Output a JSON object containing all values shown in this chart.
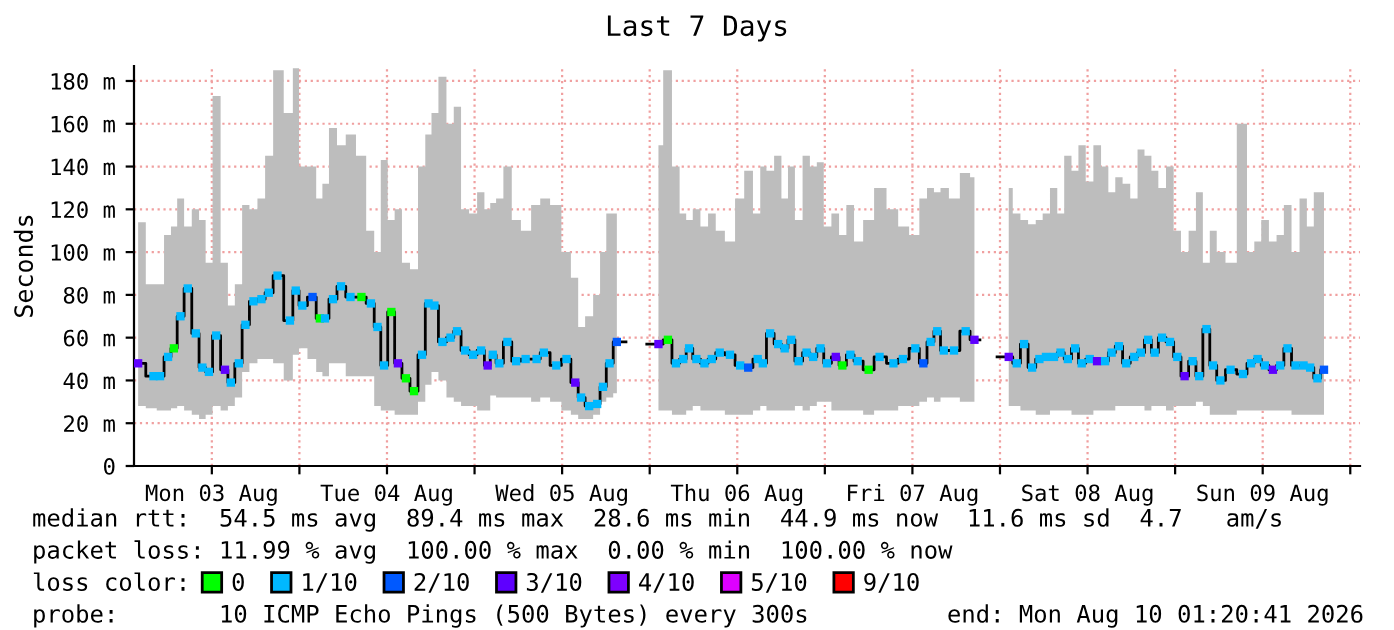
{
  "chart_data": {
    "type": "step",
    "title": "Last 7 Days",
    "ylabel": "Seconds",
    "legend_title": "loss color:",
    "legend": "bottom",
    "grid": true,
    "xlim": [
      "2026-08-03T01:20",
      "2026-08-10T01:20"
    ],
    "xticks": [
      {
        "value": "2026-08-03T12:00",
        "label": "Mon 03 Aug"
      },
      {
        "value": "2026-08-04T00:00",
        "label": null
      },
      {
        "value": "2026-08-04T12:00",
        "label": "Tue 04 Aug"
      },
      {
        "value": "2026-08-05T00:00",
        "label": null
      },
      {
        "value": "2026-08-05T12:00",
        "label": "Wed 05 Aug"
      },
      {
        "value": "2026-08-06T00:00",
        "label": null
      },
      {
        "value": "2026-08-06T12:00",
        "label": "Thu 06 Aug"
      },
      {
        "value": "2026-08-07T00:00",
        "label": null
      },
      {
        "value": "2026-08-07T12:00",
        "label": "Fri 07 Aug"
      },
      {
        "value": "2026-08-08T00:00",
        "label": null
      },
      {
        "value": "2026-08-08T12:00",
        "label": "Sat 08 Aug"
      },
      {
        "value": "2026-08-09T00:00",
        "label": null
      },
      {
        "value": "2026-08-09T12:00",
        "label": "Sun 09 Aug"
      },
      {
        "value": "2026-08-10T00:00",
        "label": null
      }
    ],
    "ylim": [
      0,
      187
    ],
    "yticks": [
      0,
      {
        "value": 20,
        "label": "20 m"
      },
      {
        "value": 40,
        "label": "40 m"
      },
      {
        "value": 60,
        "label": "60 m"
      },
      {
        "value": 80,
        "label": "80 m"
      },
      {
        "value": 100,
        "label": "100 m"
      },
      {
        "value": 120,
        "label": "120 m"
      },
      {
        "value": 140,
        "label": "140 m"
      },
      {
        "value": 160,
        "label": "160 m"
      },
      {
        "value": 180,
        "label": "180 m"
      }
    ],
    "annotations": [
      "median rtt:  54.5 ms avg  89.4 ms max  28.6 ms min  44.9 ms now  11.6 ms sd  4.7   am/s",
      "packet loss: 11.99 % avg  100.00 % max  0.00 % min  100.00 % now",
      "probe:       10 ICMP Echo Pings (500 Bytes) every 300s",
      "end: Mon Aug 10 01:20:41 2026"
    ],
    "series": [
      {
        "color": "#000000",
        "marker": "square",
        "x": [
          "2026-08-03T01:54",
          "2026-08-03T04:00",
          "2026-08-03T04:54",
          "2026-08-03T06:00",
          "2026-08-03T06:48",
          "2026-08-03T07:42",
          "2026-08-03T08:42",
          "2026-08-03T09:48",
          "2026-08-03T10:42",
          "2026-08-03T11:36",
          "2026-08-03T12:36",
          "2026-08-03T13:48",
          "2026-08-03T14:36",
          "2026-08-03T15:42",
          "2026-08-03T16:36",
          "2026-08-03T17:42",
          "2026-08-03T18:48",
          "2026-08-03T19:48",
          "2026-08-03T21:00",
          "2026-08-03T22:42",
          "2026-08-03T23:30",
          "2026-08-04T00:24",
          "2026-08-04T01:48",
          "2026-08-04T02:48",
          "2026-08-04T03:30",
          "2026-08-04T04:36",
          "2026-08-04T05:42",
          "2026-08-04T07:00",
          "2026-08-04T08:30",
          "2026-08-04T09:48",
          "2026-08-04T10:42",
          "2026-08-04T11:36",
          "2026-08-04T12:36",
          "2026-08-04T13:30",
          "2026-08-04T14:36",
          "2026-08-04T15:42",
          "2026-08-04T16:48",
          "2026-08-04T17:42",
          "2026-08-04T18:30",
          "2026-08-04T19:36",
          "2026-08-04T20:42",
          "2026-08-04T21:36",
          "2026-08-04T22:42",
          "2026-08-04T23:48",
          "2026-08-05T00:54",
          "2026-08-05T01:48",
          "2026-08-05T02:30",
          "2026-08-05T03:24",
          "2026-08-05T04:30",
          "2026-08-05T05:42",
          "2026-08-05T07:00",
          "2026-08-05T08:30",
          "2026-08-05T09:30",
          "2026-08-05T11:12",
          "2026-08-05T12:36",
          "2026-08-05T13:48",
          "2026-08-05T14:36",
          "2026-08-05T15:42",
          "2026-08-05T16:48",
          "2026-08-05T17:36",
          "2026-08-05T18:30",
          "2026-08-05T19:30",
          "2026-08-05T22:00",
          "2026-08-06T01:12",
          "2026-08-06T02:30",
          "2026-08-06T03:36",
          "2026-08-06T04:36",
          "2026-08-06T05:24",
          "2026-08-06T06:24",
          "2026-08-06T07:30",
          "2026-08-06T08:30",
          "2026-08-06T09:36",
          "2026-08-06T11:00",
          "2026-08-06T12:24",
          "2026-08-06T13:30",
          "2026-08-06T14:48",
          "2026-08-06T15:30",
          "2026-08-06T16:30",
          "2026-08-06T17:36",
          "2026-08-06T18:30",
          "2026-08-06T19:24",
          "2026-08-06T20:24",
          "2026-08-06T21:30",
          "2026-08-06T22:24",
          "2026-08-06T23:24",
          "2026-08-07T00:18",
          "2026-08-07T01:30",
          "2026-08-07T02:24",
          "2026-08-07T03:30",
          "2026-08-07T04:30",
          "2026-08-07T06:00",
          "2026-08-07T07:30",
          "2026-08-07T09:24",
          "2026-08-07T10:42",
          "2026-08-07T12:24",
          "2026-08-07T13:30",
          "2026-08-07T14:30",
          "2026-08-07T15:24",
          "2026-08-07T16:18",
          "2026-08-07T17:42",
          "2026-08-07T19:18",
          "2026-08-07T20:30",
          "2026-08-07T22:00",
          "2026-08-08T01:12",
          "2026-08-08T02:18",
          "2026-08-08T03:18",
          "2026-08-08T04:24",
          "2026-08-08T05:24",
          "2026-08-08T06:18",
          "2026-08-08T07:24",
          "2026-08-08T08:18",
          "2026-08-08T09:18",
          "2026-08-08T10:18",
          "2026-08-08T11:12",
          "2026-08-08T12:18",
          "2026-08-08T13:18",
          "2026-08-08T14:24",
          "2026-08-08T15:18",
          "2026-08-08T16:18",
          "2026-08-08T17:18",
          "2026-08-08T18:24",
          "2026-08-08T19:18",
          "2026-08-08T20:18",
          "2026-08-08T21:12",
          "2026-08-08T22:12",
          "2026-08-08T23:18",
          "2026-08-09T00:18",
          "2026-08-09T01:18",
          "2026-08-09T02:24",
          "2026-08-09T03:18",
          "2026-08-09T04:18",
          "2026-08-09T05:12",
          "2026-08-09T06:12",
          "2026-08-09T07:36",
          "2026-08-09T09:18",
          "2026-08-09T10:24",
          "2026-08-09T11:18",
          "2026-08-09T12:18",
          "2026-08-09T13:24",
          "2026-08-09T14:24",
          "2026-08-09T15:24",
          "2026-08-09T16:30",
          "2026-08-09T17:36",
          "2026-08-09T18:30",
          "2026-08-09T19:30",
          "2026-08-09T20:24"
        ],
        "values": [
          48,
          42,
          42,
          51,
          55,
          70,
          83,
          62,
          46,
          44,
          61,
          45,
          39,
          48,
          66,
          77,
          78,
          81,
          89,
          68,
          82,
          75,
          79,
          69,
          69,
          78,
          84,
          79,
          79,
          76,
          65,
          47,
          72,
          48,
          41,
          35,
          52,
          76,
          75,
          58,
          60,
          63,
          54,
          52,
          54,
          47,
          52,
          48,
          58,
          49,
          50,
          50,
          53,
          47,
          50,
          39,
          32,
          28,
          29,
          37,
          48,
          58,
          null,
          57,
          59,
          48,
          50,
          55,
          50,
          48,
          50,
          53,
          52,
          47,
          46,
          50,
          48,
          62,
          57,
          55,
          59,
          49,
          53,
          51,
          55,
          48,
          51,
          47,
          52,
          49,
          45,
          51,
          48,
          50,
          55,
          48,
          58,
          63,
          54,
          54,
          63,
          59,
          null,
          51,
          48,
          57,
          46,
          50,
          51,
          51,
          53,
          50,
          55,
          48,
          50,
          49,
          49,
          53,
          56,
          48,
          51,
          53,
          59,
          53,
          60,
          58,
          51,
          42,
          49,
          42,
          64,
          47,
          40,
          45,
          43,
          48,
          50,
          47,
          45,
          47,
          55,
          47,
          47,
          46,
          41,
          45
        ],
        "colors": [
          "#5e00ff",
          "#00b8ff",
          "#00b8ff",
          "#00b8ff",
          "#00ff00",
          "#00b8ff",
          "#00b8ff",
          "#00b8ff",
          "#00b8ff",
          "#00b8ff",
          "#00b8ff",
          "#5e00ff",
          "#00b8ff",
          "#00b8ff",
          "#00b8ff",
          "#00b8ff",
          "#00b8ff",
          "#00b8ff",
          "#00b8ff",
          "#00b8ff",
          "#00b8ff",
          "#00b8ff",
          "#0059ff",
          "#00ff00",
          "#00b8ff",
          "#00b8ff",
          "#00b8ff",
          "#00b8ff",
          "#00ff00",
          "#00b8ff",
          "#00b8ff",
          "#00b8ff",
          "#00ff00",
          "#5e00ff",
          "#00ff00",
          "#00ff00",
          "#00b8ff",
          "#00b8ff",
          "#00b8ff",
          "#00b8ff",
          "#00b8ff",
          "#00b8ff",
          "#00b8ff",
          "#00b8ff",
          "#00b8ff",
          "#5e00ff",
          "#00b8ff",
          "#00b8ff",
          "#00b8ff",
          "#00b8ff",
          "#00b8ff",
          "#00b8ff",
          "#00b8ff",
          "#00b8ff",
          "#00b8ff",
          "#5e00ff",
          "#00b8ff",
          "#00b8ff",
          "#00b8ff",
          "#00b8ff",
          "#00b8ff",
          "#0059ff",
          null,
          "#5e00ff",
          "#00ff00",
          "#00b8ff",
          "#00b8ff",
          "#00b8ff",
          "#00b8ff",
          "#00b8ff",
          "#00b8ff",
          "#00b8ff",
          "#00b8ff",
          "#00b8ff",
          "#0059ff",
          "#00b8ff",
          "#00b8ff",
          "#00b8ff",
          "#00b8ff",
          "#00b8ff",
          "#00b8ff",
          "#00b8ff",
          "#00b8ff",
          "#00b8ff",
          "#00b8ff",
          "#00b8ff",
          "#5e00ff",
          "#00ff00",
          "#00b8ff",
          "#00b8ff",
          "#00ff00",
          "#00b8ff",
          "#00b8ff",
          "#00b8ff",
          "#00b8ff",
          "#0059ff",
          "#00b8ff",
          "#00b8ff",
          "#00b8ff",
          "#00b8ff",
          "#00b8ff",
          "#5e00ff",
          null,
          "#5e00ff",
          "#00b8ff",
          "#00b8ff",
          "#00b8ff",
          "#00b8ff",
          "#00b8ff",
          "#00b8ff",
          "#00b8ff",
          "#00b8ff",
          "#00b8ff",
          "#00b8ff",
          "#00b8ff",
          "#5e00ff",
          "#00b8ff",
          "#00b8ff",
          "#00b8ff",
          "#00b8ff",
          "#00b8ff",
          "#00b8ff",
          "#00b8ff",
          "#00b8ff",
          "#00b8ff",
          "#00b8ff",
          "#00b8ff",
          "#5e00ff",
          "#00b8ff",
          "#00b8ff",
          "#00b8ff",
          "#00b8ff",
          "#00b8ff",
          "#00b8ff",
          "#00b8ff",
          "#00b8ff",
          "#00b8ff",
          "#00b8ff",
          "#5e00ff",
          "#00b8ff",
          "#00b8ff",
          "#00b8ff",
          "#00b8ff",
          "#00b8ff",
          "#00b8ff",
          "#0059ff"
        ],
        "lower": [
          28,
          27,
          26,
          26,
          27,
          28,
          26,
          24,
          22,
          24,
          28,
          26,
          28,
          32,
          44,
          48,
          50,
          50,
          48,
          40,
          52,
          55,
          50,
          44,
          42,
          48,
          48,
          42,
          42,
          42,
          28,
          26,
          26,
          24,
          24,
          24,
          30,
          38,
          44,
          40,
          32,
          30,
          28,
          28,
          26,
          26,
          33,
          32,
          32,
          32,
          32,
          30,
          32,
          30,
          26,
          24,
          22,
          22,
          24,
          30,
          32,
          34,
          null,
          26,
          26,
          24,
          24,
          26,
          28,
          26,
          26,
          26,
          24,
          24,
          24,
          26,
          28,
          26,
          26,
          26,
          26,
          28,
          26,
          28,
          30,
          30,
          26,
          26,
          26,
          26,
          24,
          26,
          26,
          28,
          28,
          30,
          32,
          30,
          32,
          32,
          30,
          30,
          null,
          28,
          28,
          26,
          26,
          24,
          24,
          26,
          26,
          26,
          24,
          24,
          24,
          26,
          26,
          26,
          28,
          28,
          28,
          28,
          26,
          28,
          28,
          26,
          28,
          28,
          28,
          30,
          28,
          24,
          24,
          24,
          26,
          26,
          26,
          26,
          26,
          26,
          26,
          24,
          24,
          24,
          24,
          24
        ],
        "upper": [
          114,
          85,
          85,
          108,
          112,
          125,
          112,
          120,
          115,
          95,
          173,
          95,
          75,
          85,
          122,
          120,
          125,
          145,
          185,
          165,
          186,
          140,
          140,
          125,
          132,
          158,
          150,
          155,
          145,
          110,
          100,
          143,
          115,
          120,
          95,
          92,
          140,
          155,
          165,
          182,
          160,
          168,
          120,
          118,
          128,
          120,
          123,
          125,
          140,
          115,
          110,
          122,
          125,
          122,
          100,
          88,
          65,
          70,
          80,
          100,
          118,
          118,
          null,
          150,
          185,
          140,
          118,
          115,
          120,
          112,
          118,
          110,
          105,
          125,
          138,
          118,
          140,
          138,
          145,
          125,
          140,
          115,
          145,
          140,
          142,
          112,
          118,
          108,
          122,
          105,
          115,
          130,
          120,
          112,
          108,
          125,
          130,
          128,
          130,
          125,
          137,
          135,
          null,
          130,
          118,
          115,
          113,
          115,
          118,
          130,
          118,
          145,
          138,
          150,
          133,
          150,
          140,
          128,
          135,
          132,
          125,
          148,
          145,
          138,
          130,
          140,
          110,
          100,
          110,
          128,
          95,
          110,
          100,
          95,
          160,
          100,
          105,
          115,
          105,
          108,
          122,
          100,
          125,
          112,
          128,
          128
        ]
      },
      {
        "name": "0",
        "color": "#00ff00"
      },
      {
        "name": "1/10",
        "color": "#00b8ff"
      },
      {
        "name": "2/10",
        "color": "#0059ff"
      },
      {
        "name": "3/10",
        "color": "#5e00ff"
      },
      {
        "name": "4/10",
        "color": "#7e00ff"
      },
      {
        "name": "5/10",
        "color": "#dd00ff"
      },
      {
        "name": "9/10",
        "color": "#ff0000"
      }
    ]
  }
}
